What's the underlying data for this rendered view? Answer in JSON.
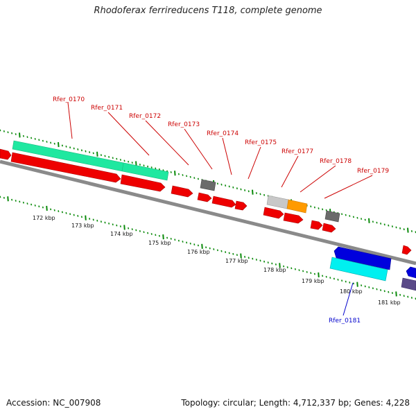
{
  "title": "Rhodoferax ferrireducens T118, complete genome",
  "accession": "Accession: NC_007908",
  "summary": "Topology: circular; Length: 4,712,337 bp; Genes: 4,228",
  "colors": {
    "cds_forward": "#ff0000",
    "cds_reverse": "#0000dd",
    "rrna": "#1fe8a0",
    "misc": "#00f0f0",
    "pseudo": "#6b6b6b",
    "trna": "#ff9a00",
    "backbone": "#888888",
    "ticks": "#0a8a0a",
    "label_forward": "#cc0000",
    "label_reverse": "#0000cc"
  },
  "gene_labels": [
    {
      "name": "Rfer_0170",
      "strand": "forward"
    },
    {
      "name": "Rfer_0171",
      "strand": "forward"
    },
    {
      "name": "Rfer_0172",
      "strand": "forward"
    },
    {
      "name": "Rfer_0173",
      "strand": "forward"
    },
    {
      "name": "Rfer_0174",
      "strand": "forward"
    },
    {
      "name": "Rfer_0175",
      "strand": "forward"
    },
    {
      "name": "Rfer_0177",
      "strand": "forward"
    },
    {
      "name": "Rfer_0178",
      "strand": "forward"
    },
    {
      "name": "Rfer_0179",
      "strand": "forward"
    },
    {
      "name": "Rfer_0181",
      "strand": "reverse"
    }
  ],
  "kbp_labels": [
    "172 kbp",
    "173 kbp",
    "174 kbp",
    "175 kbp",
    "176 kbp",
    "177 kbp",
    "178 kbp",
    "179 kbp",
    "180 kbp",
    "181 kbp"
  ]
}
